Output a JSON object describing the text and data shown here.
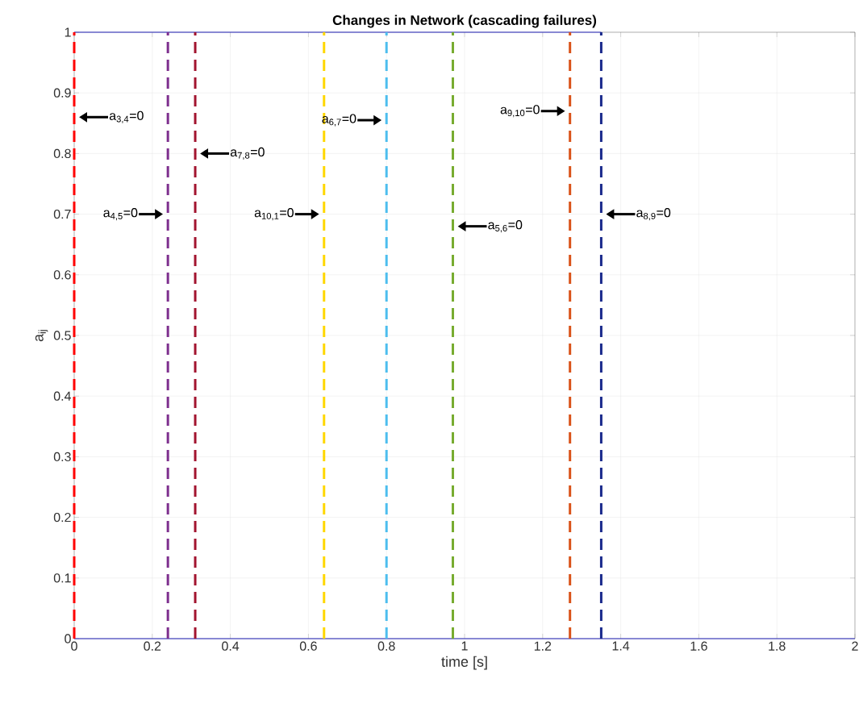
{
  "chart_data": {
    "type": "line",
    "title": "Changes in Network (cascading failures)",
    "xlabel": "time [s]",
    "ylabel": "a$_{ij}$",
    "xlim": [
      0,
      2
    ],
    "ylim": [
      0,
      1
    ],
    "xticks": [
      0,
      0.2,
      0.4,
      0.6,
      0.8,
      1,
      1.2,
      1.4,
      1.6,
      1.8,
      2
    ],
    "yticks": [
      0,
      0.1,
      0.2,
      0.3,
      0.4,
      0.5,
      0.6,
      0.7,
      0.8,
      0.9,
      1
    ],
    "grid": true,
    "marker": "none",
    "series": [
      {
        "color": "#3c3cd2",
        "x": [
          0,
          1.35
        ],
        "values": [
          1,
          1
        ],
        "line_style": "solid"
      },
      {
        "color": "#3c3cd2",
        "x": [
          0,
          2
        ],
        "values": [
          0,
          0
        ],
        "line_style": "solid"
      },
      {
        "color": "#ff0000",
        "x": [
          0,
          0
        ],
        "values": [
          0,
          1
        ],
        "line_style": "dashed"
      },
      {
        "color": "#7e2f8e",
        "x": [
          0.24,
          0.24
        ],
        "values": [
          0,
          1
        ],
        "line_style": "dashed"
      },
      {
        "color": "#a2142f",
        "x": [
          0.31,
          0.31
        ],
        "values": [
          0,
          1
        ],
        "line_style": "dashed"
      },
      {
        "color": "#ffd700",
        "x": [
          0.64,
          0.64
        ],
        "values": [
          0,
          1
        ],
        "line_style": "dashed"
      },
      {
        "color": "#4dbeee",
        "x": [
          0.8,
          0.8
        ],
        "values": [
          0,
          1
        ],
        "line_style": "dashed"
      },
      {
        "color": "#77ac30",
        "x": [
          0.97,
          0.97
        ],
        "values": [
          0,
          1
        ],
        "line_style": "dashed"
      },
      {
        "color": "#d95319",
        "x": [
          1.27,
          1.27
        ],
        "values": [
          0,
          1
        ],
        "line_style": "dashed"
      },
      {
        "color": "#1a2a8c",
        "x": [
          1.35,
          1.35
        ],
        "values": [
          0,
          1
        ],
        "line_style": "dashed"
      }
    ],
    "annotations": [
      {
        "text": "a$_{3,4}$=0",
        "x": 0,
        "y": 0.86
      },
      {
        "text": "a$_{4,5}$=0",
        "x": 0.24,
        "y": 0.7
      },
      {
        "text": "a$_{7,8}$=0",
        "x": 0.31,
        "y": 0.8
      },
      {
        "text": "a$_{10,1}$=0",
        "x": 0.64,
        "y": 0.7
      },
      {
        "text": "a$_{6,7}$=0",
        "x": 0.8,
        "y": 0.855
      },
      {
        "text": "a$_{5,6}$=0",
        "x": 0.97,
        "y": 0.68
      },
      {
        "text": "a$_{9,10}$=0",
        "x": 1.27,
        "y": 0.87
      },
      {
        "text": "a$_{8,9}$=0",
        "x": 1.35,
        "y": 0.7
      }
    ]
  }
}
